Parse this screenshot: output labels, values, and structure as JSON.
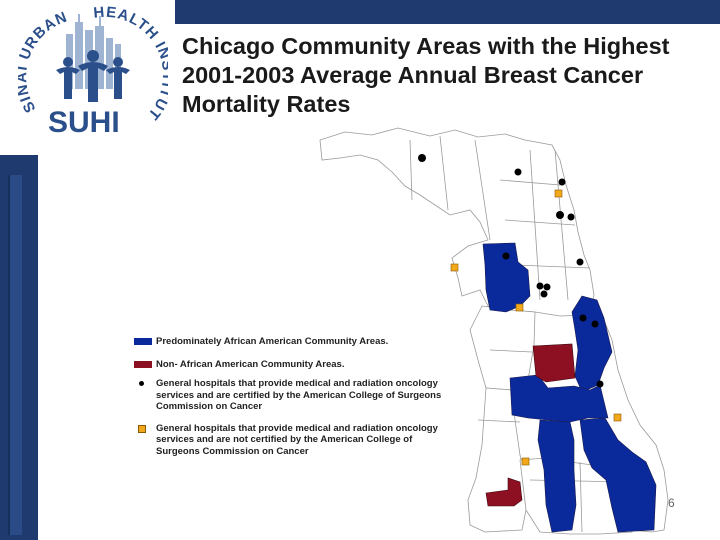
{
  "logo": {
    "text_arc_left": "SINAI URBAN",
    "text_arc_right": "HEALTH INSTITUTE",
    "acronym": "SUHI"
  },
  "title": "Chicago Community Areas with the Highest 2001-2003 Average Annual Breast Cancer Mortality Rates",
  "legend": {
    "african_american": "Predominately African American Community Areas.",
    "non_african_american": "Non- African American Community Areas.",
    "certified_hospitals": "General hospitals that provide medical and radiation oncology services and are certified by the American College of Surgeons Commission on Cancer",
    "not_certified_hospitals": "General hospitals that provide medical and radiation oncology services and are not certified by the American College of Surgeons Commission on Cancer"
  },
  "colors": {
    "african_american_areas": "#0a2a9c",
    "non_african_american_areas": "#8c1022",
    "certified_marker": "#000000",
    "not_certified_marker": "#f2a81d",
    "slide_accent": "#1f3a6e"
  },
  "page_number": "6"
}
